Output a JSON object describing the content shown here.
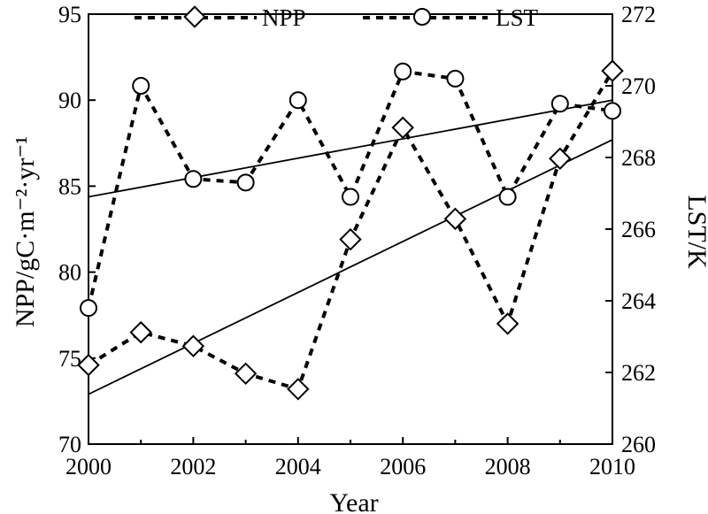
{
  "chart_data": {
    "type": "line",
    "x": [
      2000,
      2001,
      2002,
      2003,
      2004,
      2005,
      2006,
      2007,
      2008,
      2009,
      2010
    ],
    "xlabel": "Year",
    "xlim": [
      2000,
      2010
    ],
    "xticks": [
      2000,
      2002,
      2004,
      2006,
      2008,
      2010
    ],
    "y_left": {
      "label": "NPP/gC·m⁻²·yr⁻¹",
      "ylim": [
        70,
        95
      ],
      "ticks": [
        70,
        75,
        80,
        85,
        90,
        95
      ]
    },
    "y_right": {
      "label": "LST/K",
      "ylim": [
        260,
        272
      ],
      "ticks": [
        260,
        262,
        264,
        266,
        268,
        270,
        272
      ]
    },
    "series": [
      {
        "name": "NPP",
        "axis": "left",
        "marker": "diamond",
        "style": "dotted",
        "values": [
          74.6,
          76.5,
          75.7,
          74.1,
          73.2,
          81.9,
          88.4,
          83.1,
          77.0,
          86.6,
          91.7
        ],
        "trend": [
          72.9,
          87.7
        ]
      },
      {
        "name": "LST",
        "axis": "right",
        "marker": "circle",
        "style": "dotted",
        "values": [
          263.8,
          270.0,
          267.4,
          267.3,
          269.6,
          266.9,
          270.4,
          270.2,
          266.9,
          269.5,
          269.3
        ],
        "trend": [
          266.9,
          269.6
        ]
      }
    ],
    "legend": "top-center",
    "grid": false
  },
  "colors": {
    "ink": "#000000",
    "background": "#ffffff"
  }
}
